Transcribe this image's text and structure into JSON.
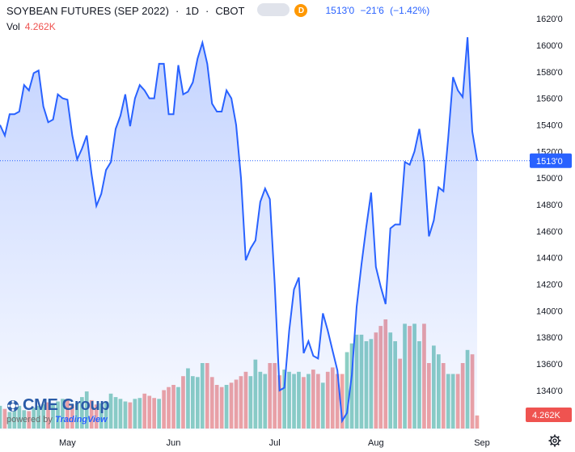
{
  "header": {
    "symbol": "SOYBEAN FUTURES (SEP 2022)",
    "interval": "1D",
    "exchange": "CBOT",
    "badge": "D",
    "price": "1513'0",
    "change": "−21'6",
    "change_pct": "(−1.42%)",
    "change_color": "#2962ff"
  },
  "volume": {
    "label": "Vol",
    "value": "4.262K",
    "color": "#ef5350"
  },
  "logo": {
    "name": "CME Group",
    "powered_by": "powered by",
    "brand": "TradingView"
  },
  "colors": {
    "line": "#2962ff",
    "up_volume": "#8ccfc4",
    "down_volume": "#f0a3a3",
    "last_label_bg": "#2962ff",
    "vol_label_bg": "#ef5350"
  },
  "chart_data": {
    "type": "line",
    "title": "SOYBEAN FUTURES (SEP 2022)",
    "y_axis": {
      "ticks": [
        "1620'0",
        "1600'0",
        "1580'0",
        "1560'0",
        "1540'0",
        "1520'0",
        "1500'0",
        "1480'0",
        "1460'0",
        "1440'0",
        "1420'0",
        "1400'0",
        "1380'0",
        "1360'0",
        "1340'0",
        "1320'0"
      ],
      "ylim": [
        1310,
        1628
      ],
      "last_price_label": "1513'0",
      "last_price": 1513,
      "volume_label": "4.262K"
    },
    "x_axis": {
      "months": [
        {
          "label": "May",
          "index": 14
        },
        {
          "label": "Jun",
          "index": 36
        },
        {
          "label": "Jul",
          "index": 57
        },
        {
          "label": "Aug",
          "index": 78
        },
        {
          "label": "Sep",
          "index": 100
        }
      ]
    },
    "series": [
      {
        "values": [
          1540,
          1532,
          1548,
          1548,
          1550,
          1570,
          1566,
          1579,
          1581,
          1554,
          1542,
          1544,
          1563,
          1560,
          1559,
          1532,
          1514,
          1522,
          1532,
          1503,
          1479,
          1488,
          1506,
          1512,
          1537,
          1547,
          1563,
          1539,
          1560,
          1570,
          1566,
          1560,
          1560,
          1586,
          1586,
          1548,
          1548,
          1585,
          1563,
          1565,
          1572,
          1590,
          1602,
          1586,
          1556,
          1550,
          1550,
          1566,
          1560,
          1540,
          1500,
          1438,
          1447,
          1453,
          1482,
          1492,
          1484,
          1420,
          1340,
          1342,
          1385,
          1416,
          1425,
          1368,
          1377,
          1366,
          1364,
          1398,
          1385,
          1370,
          1355,
          1317,
          1323,
          1352,
          1403,
          1435,
          1463,
          1489,
          1433,
          1418,
          1405,
          1462,
          1465,
          1465,
          1512,
          1510,
          1520,
          1537,
          1512,
          1456,
          1468,
          1493,
          1490,
          1530,
          1576,
          1566,
          1561,
          1606,
          1535,
          1513
        ],
        "volume": [
          52,
          45,
          38,
          44,
          52,
          42,
          40,
          48,
          52,
          56,
          60,
          58,
          62,
          68,
          68,
          55,
          58,
          72,
          85,
          65,
          55,
          58,
          62,
          80,
          72,
          68,
          62,
          60,
          68,
          70,
          80,
          75,
          70,
          68,
          88,
          95,
          100,
          95,
          120,
          138,
          120,
          118,
          150,
          150,
          118,
          100,
          95,
          100,
          105,
          112,
          120,
          130,
          120,
          158,
          130,
          125,
          150,
          150,
          122,
          135,
          130,
          125,
          130,
          118,
          125,
          135,
          125,
          105,
          130,
          140,
          125,
          125,
          175,
          195,
          215,
          215,
          200,
          205,
          220,
          235,
          250,
          220,
          200,
          160,
          240,
          235,
          240,
          200,
          240,
          150,
          190,
          170,
          150,
          125,
          125,
          125,
          150,
          180,
          170,
          30
        ],
        "up": [
          1,
          0,
          1,
          1,
          1,
          1,
          0,
          1,
          1,
          1,
          0,
          1,
          1,
          1,
          0,
          0,
          1,
          1,
          1,
          0,
          0,
          1,
          1,
          1,
          1,
          1,
          1,
          0,
          1,
          1,
          0,
          0,
          0,
          1,
          0,
          0,
          0,
          1,
          0,
          1,
          1,
          1,
          1,
          0,
          0,
          0,
          0,
          1,
          0,
          0,
          0,
          0,
          1,
          1,
          1,
          1,
          0,
          0,
          0,
          1,
          1,
          1,
          1,
          0,
          1,
          0,
          0,
          1,
          0,
          0,
          0,
          0,
          1,
          1,
          1,
          1,
          1,
          1,
          0,
          0,
          0,
          1,
          1,
          0,
          1,
          0,
          1,
          1,
          0,
          0,
          1,
          1,
          0,
          1,
          1,
          0,
          0,
          1,
          0,
          0
        ]
      }
    ]
  }
}
